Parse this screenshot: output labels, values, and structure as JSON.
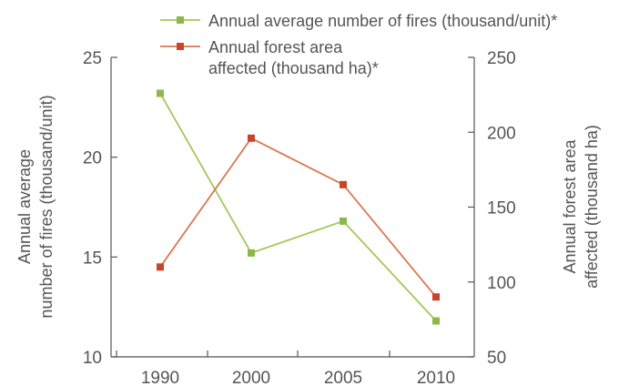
{
  "chart_data": {
    "type": "line",
    "categories": [
      "1990",
      "2000",
      "2005",
      "2010"
    ],
    "series": [
      {
        "name": "Annual average number of fires (thousand/unit)*",
        "axis": "left",
        "color": "#a3c85a",
        "marker_color": "#8cb84a",
        "values": [
          23.2,
          15.2,
          16.8,
          11.8
        ]
      },
      {
        "name": "Annual forest area affected (thousand ha)*",
        "axis": "right",
        "color": "#d9784f",
        "marker_color": "#c9452a",
        "values": [
          110,
          196,
          165,
          90
        ]
      }
    ],
    "legend_lines": [
      [
        "Annual average number of fires (thousand/unit)*"
      ],
      [
        "Annual forest area",
        "affected (thousand ha)*"
      ]
    ],
    "y_left": {
      "label_lines": [
        "Annual average",
        "number of fires (thousand/unit)"
      ],
      "lim": [
        10,
        25
      ],
      "ticks": [
        10,
        15,
        20,
        25
      ]
    },
    "y_right": {
      "label_lines": [
        "Annual forest area",
        "affected (thousand ha)"
      ],
      "lim": [
        50,
        250
      ],
      "ticks": [
        50,
        100,
        150,
        200,
        250
      ]
    },
    "grid": false,
    "legend_position": "top"
  }
}
